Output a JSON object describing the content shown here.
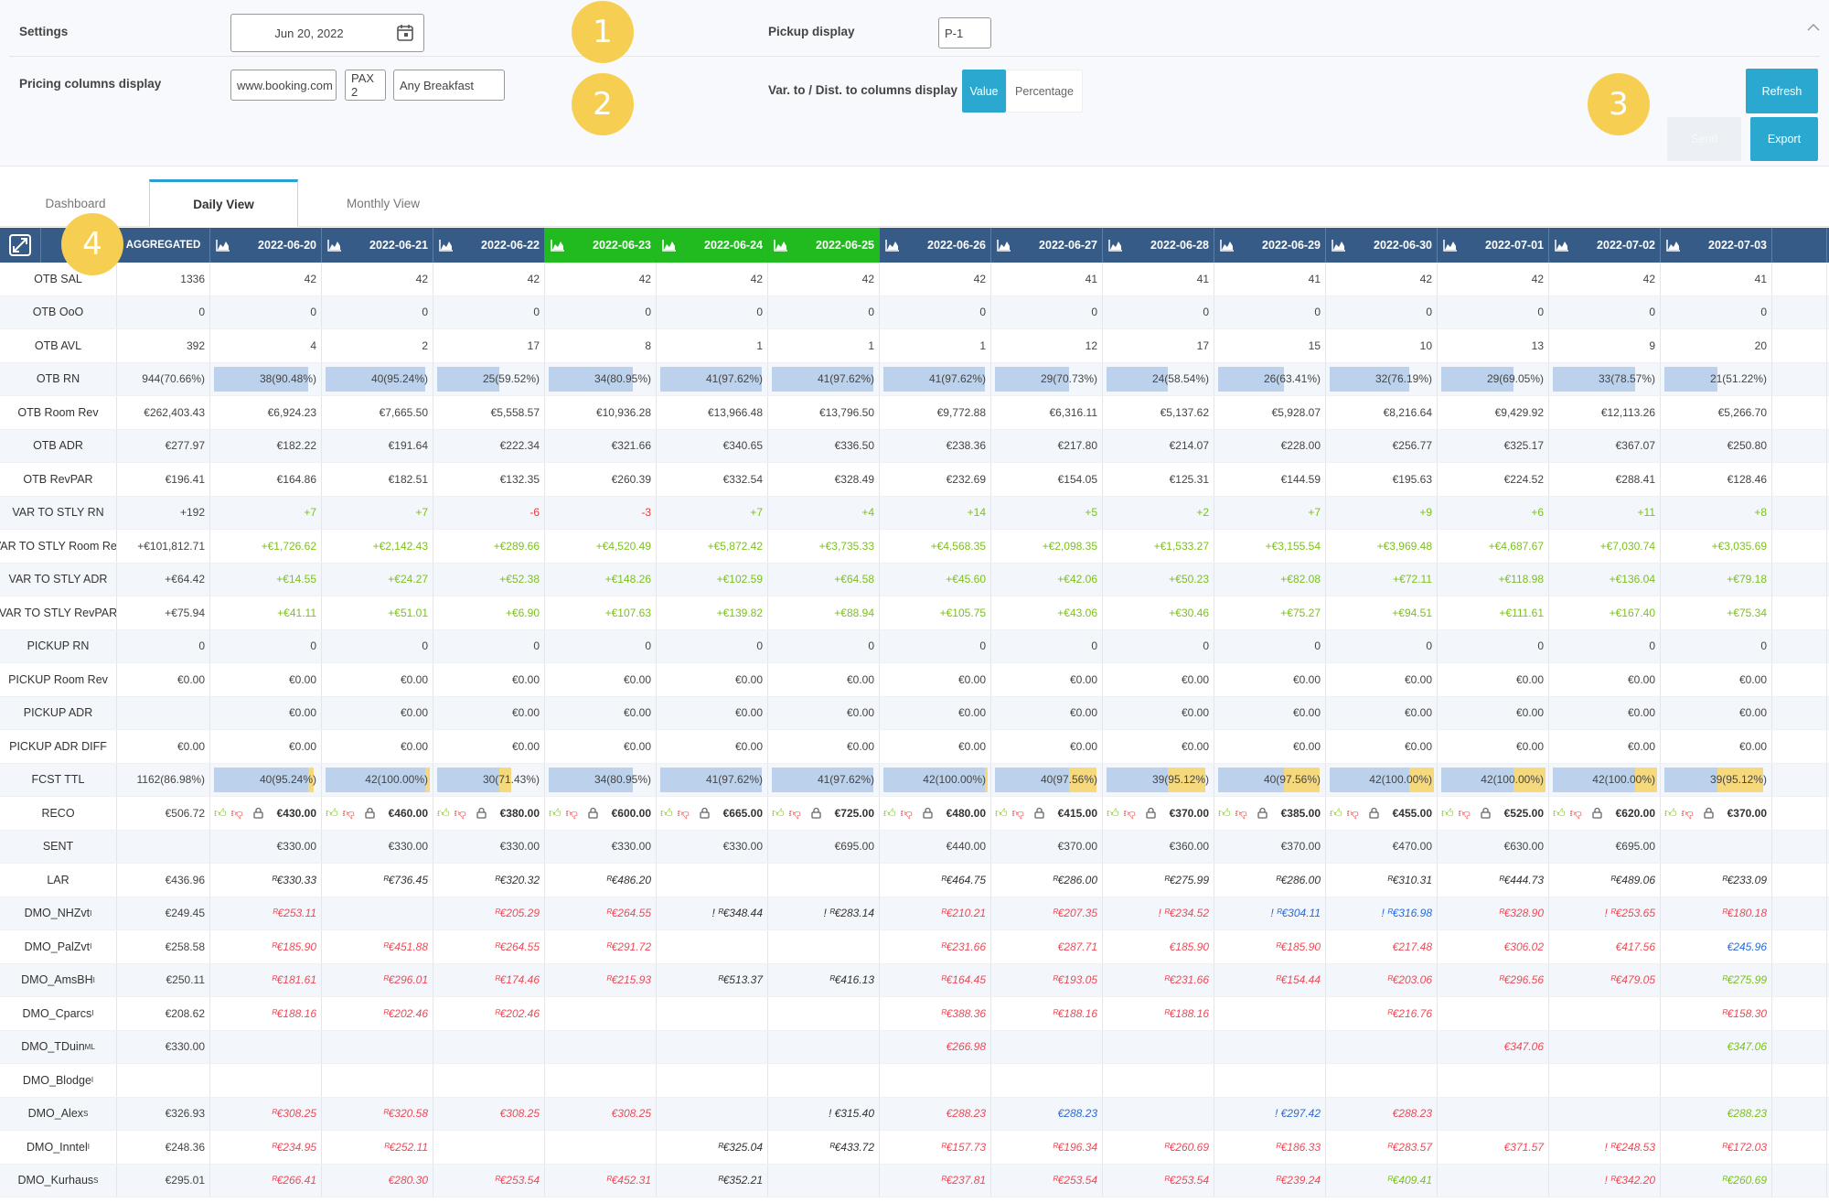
{
  "settings": {
    "label": "Settings",
    "date": "Jun 20, 2022",
    "pickup_label": "Pickup display",
    "pickup_value": "P-1",
    "pricing_label": "Pricing columns display",
    "pricing_source": "www.booking.com",
    "pricing_pax": "PAX 2",
    "pricing_board": "Any Breakfast",
    "var_label": "Var. to / Dist. to columns display",
    "toggle_value": "Value",
    "toggle_percentage": "Percentage"
  },
  "badges": [
    "1",
    "2",
    "3",
    "4"
  ],
  "buttons": {
    "refresh": "Refresh",
    "export": "Export",
    "send": "Send"
  },
  "tabs": [
    "Dashboard",
    "Daily View",
    "Monthly View"
  ],
  "colors": {
    "header": "#365b86",
    "highlight": "#22bb1f",
    "accent": "#2aa8cf",
    "badge": "#f6cf52",
    "positive": "#7cc11c",
    "negative": "#e53935"
  },
  "table": {
    "aggregated_label": "AGGREGATED",
    "dates": [
      "2022-06-20",
      "2022-06-21",
      "2022-06-22",
      "2022-06-23",
      "2022-06-24",
      "2022-06-25",
      "2022-06-26",
      "2022-06-27",
      "2022-06-28",
      "2022-06-29",
      "2022-06-30",
      "2022-07-01",
      "2022-07-02",
      "2022-07-03"
    ],
    "highlighted_dates": [
      "2022-06-23",
      "2022-06-24",
      "2022-06-25"
    ],
    "rows": [
      {
        "label": "OTB SAL",
        "agg": "1336",
        "values": [
          "42",
          "42",
          "42",
          "42",
          "42",
          "42",
          "42",
          "41",
          "41",
          "41",
          "42",
          "42",
          "42",
          "41"
        ]
      },
      {
        "label": "OTB OoO",
        "agg": "0",
        "values": [
          "0",
          "0",
          "0",
          "0",
          "0",
          "0",
          "0",
          "0",
          "0",
          "0",
          "0",
          "0",
          "0",
          "0"
        ]
      },
      {
        "label": "OTB AVL",
        "agg": "392",
        "values": [
          "4",
          "2",
          "17",
          "8",
          "1",
          "1",
          "1",
          "12",
          "17",
          "15",
          "10",
          "13",
          "9",
          "20"
        ]
      },
      {
        "label": "OTB RN",
        "agg": "944(70.66%)",
        "type": "bar",
        "values": [
          "38(90.48%)",
          "40(95.24%)",
          "25(59.52%)",
          "34(80.95%)",
          "41(97.62%)",
          "41(97.62%)",
          "41(97.62%)",
          "29(70.73%)",
          "24(58.54%)",
          "26(63.41%)",
          "32(76.19%)",
          "29(69.05%)",
          "33(78.57%)",
          "21(51.22%)"
        ],
        "fill": [
          0.9048,
          0.9524,
          0.5952,
          0.8095,
          0.9762,
          0.9762,
          0.9762,
          0.7073,
          0.5854,
          0.6341,
          0.7619,
          0.6905,
          0.7857,
          0.5122
        ]
      },
      {
        "label": "OTB Room Rev",
        "agg": "€262,403.43",
        "values": [
          "€6,924.23",
          "€7,665.50",
          "€5,558.57",
          "€10,936.28",
          "€13,966.48",
          "€13,796.50",
          "€9,772.88",
          "€6,316.11",
          "€5,137.62",
          "€5,928.07",
          "€8,216.64",
          "€9,429.92",
          "€12,113.26",
          "€5,266.70"
        ]
      },
      {
        "label": "OTB ADR",
        "agg": "€277.97",
        "values": [
          "€182.22",
          "€191.64",
          "€222.34",
          "€321.66",
          "€340.65",
          "€336.50",
          "€238.36",
          "€217.80",
          "€214.07",
          "€228.00",
          "€256.77",
          "€325.17",
          "€367.07",
          "€250.80"
        ]
      },
      {
        "label": "OTB RevPAR",
        "agg": "€196.41",
        "values": [
          "€164.86",
          "€182.51",
          "€132.35",
          "€260.39",
          "€332.54",
          "€328.49",
          "€232.69",
          "€154.05",
          "€125.31",
          "€144.59",
          "€195.63",
          "€224.52",
          "€288.41",
          "€128.46"
        ]
      },
      {
        "label": "VAR TO STLY RN",
        "agg": "+192",
        "type": "var",
        "values": [
          "+7",
          "+7",
          "-6",
          "-3",
          "+7",
          "+4",
          "+14",
          "+5",
          "+2",
          "+7",
          "+9",
          "+6",
          "+11",
          "+8"
        ]
      },
      {
        "label": "VAR TO STLY Room Rev",
        "agg": "+€101,812.71",
        "type": "var",
        "values": [
          "+€1,726.62",
          "+€2,142.43",
          "+€289.66",
          "+€4,520.49",
          "+€5,872.42",
          "+€3,735.33",
          "+€4,568.35",
          "+€2,098.35",
          "+€1,533.27",
          "+€3,155.54",
          "+€3,969.48",
          "+€4,687.67",
          "+€7,030.74",
          "+€3,035.69"
        ]
      },
      {
        "label": "VAR TO STLY ADR",
        "agg": "+€64.42",
        "type": "var",
        "values": [
          "+€14.55",
          "+€24.27",
          "+€52.38",
          "+€148.26",
          "+€102.59",
          "+€64.58",
          "+€45.60",
          "+€42.06",
          "+€50.23",
          "+€82.08",
          "+€72.11",
          "+€118.98",
          "+€136.04",
          "+€79.18"
        ]
      },
      {
        "label": "VAR TO STLY RevPAR",
        "agg": "+€75.94",
        "type": "var",
        "values": [
          "+€41.11",
          "+€51.01",
          "+€6.90",
          "+€107.63",
          "+€139.82",
          "+€88.94",
          "+€105.75",
          "+€43.06",
          "+€30.46",
          "+€75.27",
          "+€94.51",
          "+€111.61",
          "+€167.40",
          "+€75.34"
        ]
      },
      {
        "label": "PICKUP RN",
        "agg": "0",
        "values": [
          "0",
          "0",
          "0",
          "0",
          "0",
          "0",
          "0",
          "0",
          "0",
          "0",
          "0",
          "0",
          "0",
          "0"
        ]
      },
      {
        "label": "PICKUP Room Rev",
        "agg": "€0.00",
        "values": [
          "€0.00",
          "€0.00",
          "€0.00",
          "€0.00",
          "€0.00",
          "€0.00",
          "€0.00",
          "€0.00",
          "€0.00",
          "€0.00",
          "€0.00",
          "€0.00",
          "€0.00",
          "€0.00"
        ]
      },
      {
        "label": "PICKUP ADR",
        "agg": "",
        "values": [
          "€0.00",
          "€0.00",
          "€0.00",
          "€0.00",
          "€0.00",
          "€0.00",
          "€0.00",
          "€0.00",
          "€0.00",
          "€0.00",
          "€0.00",
          "€0.00",
          "€0.00",
          "€0.00"
        ]
      },
      {
        "label": "PICKUP ADR DIFF",
        "agg": "€0.00",
        "values": [
          "€0.00",
          "€0.00",
          "€0.00",
          "€0.00",
          "€0.00",
          "€0.00",
          "€0.00",
          "€0.00",
          "€0.00",
          "€0.00",
          "€0.00",
          "€0.00",
          "€0.00",
          "€0.00"
        ]
      },
      {
        "label": "FCST TTL",
        "agg": "1162(86.98%)",
        "type": "bar",
        "values": [
          "40(95.24%)",
          "42(100.00%)",
          "30(71.43%)",
          "34(80.95%)",
          "41(97.62%)",
          "41(97.62%)",
          "42(100.00%)",
          "40(97.56%)",
          "39(95.12%)",
          "40(97.56%)",
          "42(100.00%)",
          "42(100.00%)",
          "42(100.00%)",
          "39(95.12%)"
        ],
        "fill": [
          0.9048,
          0.9524,
          0.5952,
          0.8095,
          0.9762,
          0.9762,
          0.9762,
          0.7073,
          0.5854,
          0.6341,
          0.7619,
          0.6905,
          0.7857,
          0.5122
        ],
        "fill2": [
          0.9524,
          1.0,
          0.7143,
          0.8095,
          0.9762,
          0.9762,
          1.0,
          0.9756,
          0.9512,
          0.9756,
          1.0,
          1.0,
          1.0,
          0.9512
        ]
      },
      {
        "label": "RECO",
        "agg": "€506.72",
        "type": "reco",
        "values": [
          "€430.00",
          "€460.00",
          "€380.00",
          "€600.00",
          "€665.00",
          "€725.00",
          "€480.00",
          "€415.00",
          "€370.00",
          "€385.00",
          "€455.00",
          "€525.00",
          "€620.00",
          "€370.00"
        ]
      },
      {
        "label": "SENT",
        "agg": "",
        "values": [
          "€330.00",
          "€330.00",
          "€330.00",
          "€330.00",
          "€330.00",
          "€695.00",
          "€440.00",
          "€370.00",
          "€360.00",
          "€370.00",
          "€470.00",
          "€630.00",
          "€695.00",
          ""
        ]
      },
      {
        "label": "LAR",
        "agg": "€436.96",
        "values": [
          "ᴿ€330.33",
          "ᴿ€736.45",
          "ᴿ€320.32",
          "ᴿ€486.20",
          "",
          "",
          "ᴿ€464.75",
          "ᴿ€286.00",
          "ᴿ€275.99",
          "ᴿ€286.00",
          "ᴿ€310.31",
          "ᴿ€444.73",
          "ᴿ€489.06",
          "ᴿ€233.09"
        ],
        "styles": [
          "k",
          "k",
          "k",
          "k",
          "",
          "",
          "k",
          "k",
          "k",
          "k",
          "k",
          "k",
          "k",
          "k"
        ]
      },
      {
        "label": "DMO_NHZvt",
        "sup": "I",
        "agg": "€249.45",
        "values": [
          "ᴿ€253.11",
          "",
          "ᴿ€205.29",
          "ᴿ€264.55",
          "! ᴿ€348.44",
          "! ᴿ€283.14",
          "ᴿ€210.21",
          "ᴿ€207.35",
          "! ᴿ€234.52",
          "! ᴿ€304.11",
          "! ᴿ€316.98",
          "ᴿ€328.90",
          "! ᴿ€253.65",
          "ᴿ€180.18"
        ],
        "styles": [
          "r",
          "",
          "r",
          "r",
          "k",
          "k",
          "r",
          "r",
          "r",
          "b",
          "b",
          "r",
          "r",
          "r"
        ]
      },
      {
        "label": "DMO_PalZvt",
        "sup": "I",
        "agg": "€258.58",
        "values": [
          "ᴿ€185.90",
          "ᴿ€451.88",
          "ᴿ€264.55",
          "ᴿ€291.72",
          "",
          "",
          "ᴿ€231.66",
          "€287.71",
          "€185.90",
          "ᴿ€185.90",
          "€217.48",
          "€306.02",
          "€417.56",
          "€245.96"
        ],
        "styles": [
          "r",
          "r",
          "r",
          "r",
          "",
          "",
          "r",
          "r",
          "r",
          "r",
          "r",
          "r",
          "r",
          "b"
        ]
      },
      {
        "label": "DMO_AmsBH",
        "sup": "I",
        "agg": "€250.11",
        "values": [
          "ᴿ€181.61",
          "ᴿ€296.01",
          "ᴿ€174.46",
          "ᴿ€215.93",
          "ᴿ€513.37",
          "ᴿ€416.13",
          "ᴿ€164.45",
          "ᴿ€193.05",
          "ᴿ€231.66",
          "ᴿ€154.44",
          "ᴿ€203.06",
          "ᴿ€296.56",
          "ᴿ€479.05",
          "ᴿ€275.99"
        ],
        "styles": [
          "r",
          "r",
          "r",
          "r",
          "k",
          "k",
          "r",
          "r",
          "r",
          "r",
          "r",
          "r",
          "r",
          "g"
        ]
      },
      {
        "label": "DMO_Cparcs",
        "sup": "I",
        "agg": "€208.62",
        "values": [
          "ᴿ€188.16",
          "ᴿ€202.46",
          "ᴿ€202.46",
          "",
          "",
          "",
          "ᴿ€388.36",
          "ᴿ€188.16",
          "ᴿ€188.16",
          "",
          "ᴿ€216.76",
          "",
          "",
          "ᴿ€158.30"
        ],
        "styles": [
          "r",
          "r",
          "r",
          "",
          "",
          "",
          "r",
          "r",
          "r",
          "",
          "r",
          "",
          "",
          "r"
        ]
      },
      {
        "label": "DMO_TDuin",
        "sup": "ML",
        "agg": "€330.00",
        "values": [
          "",
          "",
          "",
          "",
          "",
          "",
          "€266.98",
          "",
          "",
          "",
          "",
          "€347.06",
          "",
          "€347.06"
        ],
        "styles": [
          "",
          "",
          "",
          "",
          "",
          "",
          "r",
          "",
          "",
          "",
          "",
          "r",
          "",
          "g"
        ]
      },
      {
        "label": "DMO_Blodge",
        "sup": "I",
        "agg": "",
        "values": [
          "",
          "",
          "",
          "",
          "",
          "",
          "",
          "",
          "",
          "",
          "",
          "",
          "",
          ""
        ],
        "styles": [
          "",
          "",
          "",
          "",
          "",
          "",
          "",
          "",
          "",
          "",
          "",
          "",
          "",
          ""
        ]
      },
      {
        "label": "DMO_Alex",
        "sup": "S",
        "agg": "€326.93",
        "values": [
          "ᴿ€308.25",
          "ᴿ€320.58",
          "€308.25",
          "€308.25",
          "",
          "! €315.40",
          "€288.23",
          "€288.23",
          "",
          "! €297.42",
          "€288.23",
          "",
          "",
          "€288.23"
        ],
        "styles": [
          "r",
          "r",
          "r",
          "r",
          "",
          "k",
          "r",
          "b",
          "",
          "b",
          "r",
          "",
          "",
          "g"
        ]
      },
      {
        "label": "DMO_Inntel",
        "sup": "I",
        "agg": "€248.36",
        "values": [
          "ᴿ€234.95",
          "ᴿ€252.11",
          "",
          "",
          "ᴿ€325.04",
          "ᴿ€433.72",
          "ᴿ€157.73",
          "ᴿ€196.34",
          "ᴿ€260.69",
          "ᴿ€186.33",
          "ᴿ€283.57",
          "€371.57",
          "! ᴿ€248.53",
          "ᴿ€172.03"
        ],
        "styles": [
          "r",
          "r",
          "",
          "",
          "k",
          "k",
          "r",
          "r",
          "r",
          "r",
          "r",
          "r",
          "r",
          "r"
        ]
      },
      {
        "label": "DMO_Kurhaus",
        "sup": "S",
        "agg": "€295.01",
        "values": [
          "ᴿ€266.41",
          "€280.30",
          "ᴿ€253.54",
          "ᴿ€452.31",
          "ᴿ€352.21",
          "",
          "ᴿ€237.81",
          "ᴿ€253.54",
          "ᴿ€253.54",
          "ᴿ€239.24",
          "ᴿ€409.41",
          "",
          "! ᴿ€342.20",
          "ᴿ€260.69"
        ],
        "styles": [
          "r",
          "r",
          "r",
          "r",
          "k",
          "",
          "r",
          "r",
          "r",
          "r",
          "g",
          "",
          "r",
          "g"
        ]
      }
    ]
  }
}
